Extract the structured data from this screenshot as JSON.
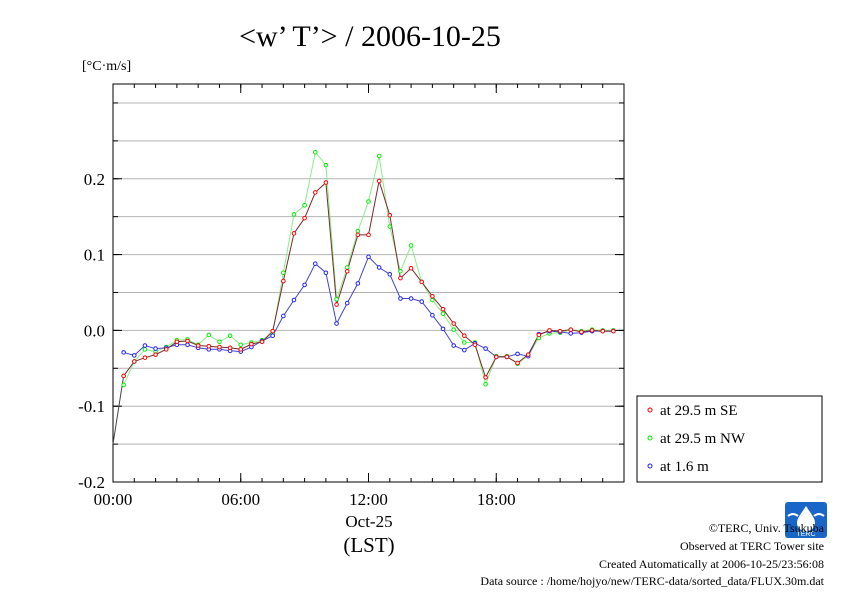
{
  "chart_data": {
    "type": "line",
    "title": "<w’ T’> / 2006-10-25",
    "ylabel": "[°C·m/s]",
    "xlabel_date": "Oct-25",
    "xlabel_unit": "(LST)",
    "ylim": [
      -0.2,
      0.325
    ],
    "xlim": [
      0,
      24
    ],
    "yticks": [
      -0.2,
      -0.1,
      0.0,
      0.1,
      0.2
    ],
    "ytick_labels": [
      "-0.2",
      "-0.1",
      "0.0",
      "0.1",
      "0.2"
    ],
    "xticks": [
      0,
      6,
      12,
      18
    ],
    "xtick_labels": [
      "00:00",
      "06:00",
      "12:00",
      "18:00"
    ],
    "grid": true,
    "legend_position": "outside-right-bottom",
    "x": [
      0.5,
      1.0,
      1.5,
      2.0,
      2.5,
      3.0,
      3.5,
      4.0,
      4.5,
      5.0,
      5.5,
      6.0,
      6.5,
      7.0,
      7.5,
      8.0,
      8.5,
      9.0,
      9.5,
      10.0,
      10.5,
      11.0,
      11.5,
      12.0,
      12.5,
      13.0,
      13.5,
      14.0,
      14.5,
      15.0,
      15.5,
      16.0,
      16.5,
      17.0,
      17.5,
      18.0,
      18.5,
      19.0,
      19.5,
      20.0,
      20.5,
      21.0,
      21.5,
      22.0,
      22.5,
      23.0,
      23.5
    ],
    "series": [
      {
        "name": "at 29.5 m SE",
        "color": "#ff0000",
        "line_color": "#7a2a2a",
        "values": [
          -0.06,
          -0.041,
          -0.036,
          -0.032,
          -0.025,
          -0.015,
          -0.014,
          -0.02,
          -0.021,
          -0.022,
          -0.023,
          -0.025,
          -0.018,
          -0.015,
          -0.001,
          0.065,
          0.128,
          0.148,
          0.182,
          0.195,
          0.034,
          0.078,
          0.126,
          0.126,
          0.197,
          0.152,
          0.069,
          0.082,
          0.064,
          0.045,
          0.028,
          0.009,
          -0.007,
          -0.019,
          -0.062,
          -0.035,
          -0.035,
          -0.043,
          -0.032,
          -0.006,
          0.0,
          -0.001,
          0.001,
          -0.002,
          0.0,
          -0.001,
          -0.001
        ]
      },
      {
        "name": "at 29.5 m NW",
        "color": "#00ee00",
        "line_color": "#88ee88",
        "values": [
          -0.072,
          -0.041,
          -0.025,
          -0.028,
          -0.022,
          -0.013,
          -0.012,
          -0.019,
          -0.006,
          -0.015,
          -0.007,
          -0.019,
          -0.016,
          -0.013,
          -0.004,
          0.076,
          0.153,
          0.165,
          0.235,
          0.218,
          0.041,
          0.083,
          0.131,
          0.17,
          0.23,
          0.137,
          0.078,
          0.112,
          0.064,
          0.04,
          0.022,
          0.001,
          -0.016,
          -0.016,
          -0.071,
          -0.034,
          -0.034,
          -0.044,
          -0.033,
          -0.01,
          -0.004,
          -0.003,
          0.001,
          -0.001,
          0.001,
          0.0,
          0.0
        ]
      },
      {
        "name": "at 1.6 m",
        "color": "#2222ff",
        "line_color": "#4444cc",
        "values": [
          -0.029,
          -0.033,
          -0.02,
          -0.024,
          -0.023,
          -0.019,
          -0.019,
          -0.023,
          -0.025,
          -0.025,
          -0.027,
          -0.028,
          -0.022,
          -0.014,
          -0.007,
          0.019,
          0.04,
          0.06,
          0.088,
          0.076,
          0.009,
          0.036,
          0.062,
          0.097,
          0.083,
          0.074,
          0.042,
          0.042,
          0.038,
          0.02,
          0.002,
          -0.02,
          -0.026,
          -0.017,
          -0.024,
          -0.035,
          -0.035,
          -0.031,
          -0.034,
          -0.005,
          -0.001,
          -0.002,
          -0.004,
          -0.003,
          -0.001,
          -0.001,
          -0.001
        ]
      }
    ],
    "start_line": {
      "x": [
        0.0,
        0.5
      ],
      "y": [
        -0.15,
        -0.06
      ]
    }
  },
  "footer": {
    "credit": "©TERC, Univ. Tsukuba",
    "observed": "Observed at TERC Tower site",
    "created": "Created Automatically at 2006-10-25/23:56:08",
    "source": "Data source : /home/hojyo/new/TERC-data/sorted_data/FLUX.30m.dat"
  },
  "logo": {
    "text": "TERC",
    "color": "#1a66c8"
  }
}
